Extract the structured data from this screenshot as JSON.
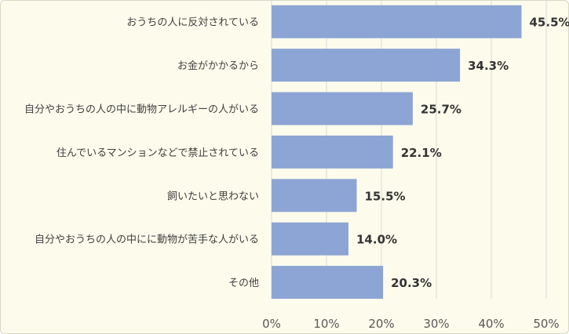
{
  "chart_data": {
    "type": "bar",
    "orientation": "horizontal",
    "categories": [
      "おうちの人に反対されている",
      "お金がかかるから",
      "自分やおうちの人の中に動物アレルギーの人がいる",
      "住んでいるマンションなどで禁止されている",
      "飼いたいと思わない",
      "自分やおうちの人の中にに動物が苦手な人がいる",
      "その他"
    ],
    "values": [
      45.5,
      34.3,
      25.7,
      22.1,
      15.5,
      14.0,
      20.3
    ],
    "value_labels": [
      "45.5%",
      "34.3%",
      "25.7%",
      "22.1%",
      "15.5%",
      "14.0%",
      "20.3%"
    ],
    "xlim": [
      0,
      50
    ],
    "xticks": [
      0,
      10,
      20,
      30,
      40,
      50
    ],
    "xtick_labels": [
      "0%",
      "10%",
      "20%",
      "30%",
      "40%",
      "50%"
    ],
    "grid": "vertical",
    "legend": "none",
    "title": "",
    "xlabel": "",
    "ylabel": "",
    "colors": {
      "bar": "#8da5d4",
      "grid": "#d9d9d9",
      "background": "#fdfbec"
    }
  }
}
